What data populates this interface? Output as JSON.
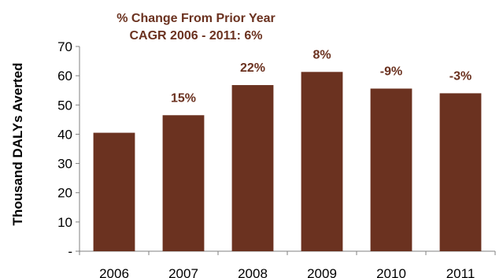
{
  "chart_data": {
    "type": "bar",
    "categories": [
      "2006",
      "2007",
      "2008",
      "2009",
      "2010",
      "2011"
    ],
    "values": [
      40.5,
      46.5,
      56.8,
      61.3,
      55.6,
      54.0
    ],
    "data_labels": [
      "",
      "15%",
      "22%",
      "8%",
      "-9%",
      "-3%"
    ],
    "title": "",
    "annotations": [
      "% Change From Prior Year",
      "CAGR 2006 - 2011: 6%"
    ],
    "xlabel": "",
    "ylabel": "Thousand DALYs Averted",
    "ylim": [
      0,
      70
    ],
    "yticks": [
      0,
      10,
      20,
      30,
      40,
      50,
      60,
      70
    ],
    "ytick_labels": [
      "-",
      "10",
      "20",
      "30",
      "40",
      "50",
      "60",
      "70"
    ],
    "grid": false,
    "legend": "none",
    "colors": {
      "bar": "#6B3220",
      "label": "#6B3220",
      "axis": "#808080"
    }
  }
}
